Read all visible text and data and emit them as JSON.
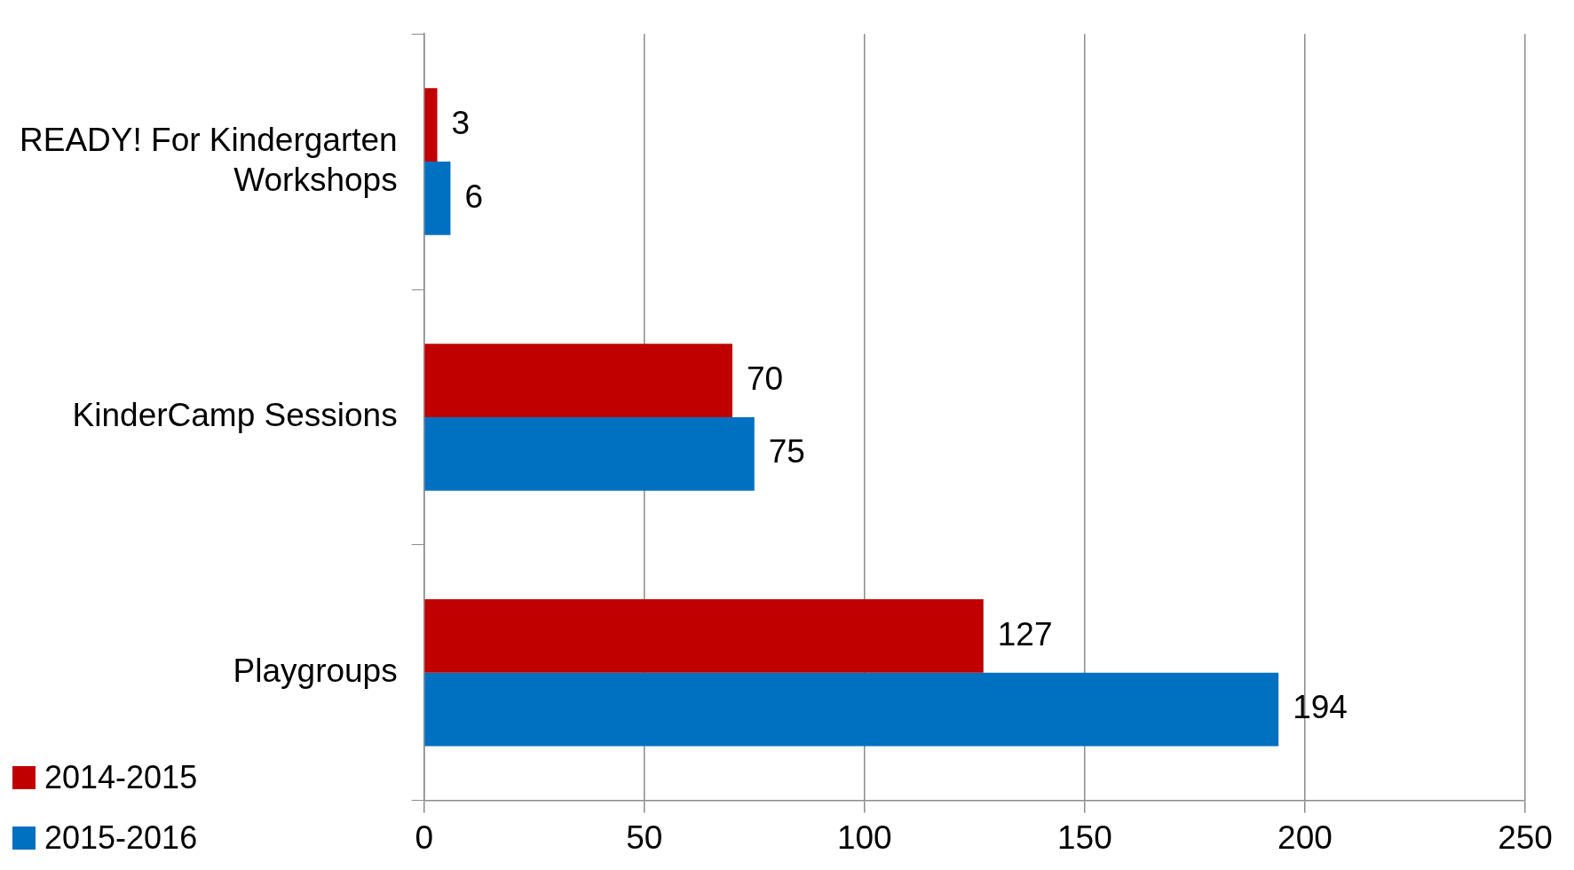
{
  "chart_data": {
    "type": "bar",
    "orientation": "horizontal",
    "categories": [
      "READY! For Kindergarten Workshops",
      "KinderCamp Sessions",
      "Playgroups"
    ],
    "series": [
      {
        "name": "2014-2015",
        "color": "#c00000",
        "values": [
          3,
          70,
          127
        ]
      },
      {
        "name": "2015-2016",
        "color": "#0070c0",
        "values": [
          6,
          75,
          194
        ]
      }
    ],
    "xlim": [
      0,
      250
    ],
    "xticks": [
      0,
      50,
      100,
      150,
      200,
      250
    ],
    "grid": "x",
    "legend": "bottom left",
    "data_labels": true
  }
}
